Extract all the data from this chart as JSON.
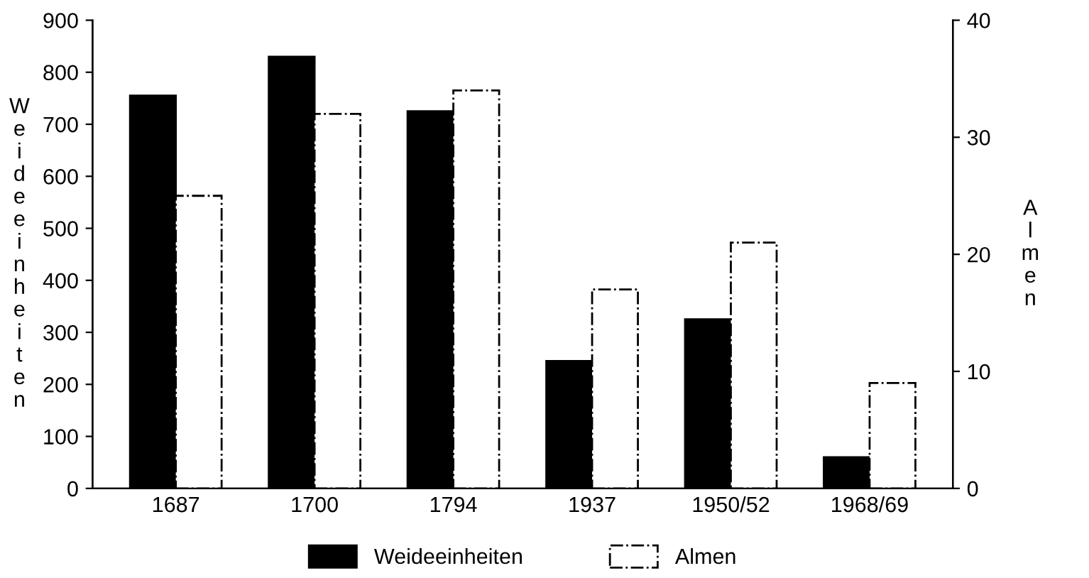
{
  "chart_data": {
    "type": "bar",
    "ylabel": "Weideeinheiten",
    "y2label": "Almen",
    "categories": [
      "1687",
      "1700",
      "1794",
      "1937",
      "1950/52",
      "1968/69"
    ],
    "series": [
      {
        "name": "Weideeinheiten",
        "color": "#000000",
        "values": [
          755,
          830,
          725,
          245,
          325,
          60
        ]
      },
      {
        "name": "Almen",
        "color": "#ffffff",
        "axis": "y2",
        "line_style": "dashed",
        "values": [
          25,
          32,
          34,
          17,
          21,
          9
        ]
      }
    ],
    "ylim": [
      0,
      900
    ],
    "yticks": [
      0,
      100,
      200,
      300,
      400,
      500,
      600,
      700,
      800,
      900
    ],
    "y2lim": [
      0,
      40
    ],
    "y2ticks": [
      0,
      10,
      20,
      30,
      40
    ],
    "grid": false,
    "legend": "bottom"
  }
}
